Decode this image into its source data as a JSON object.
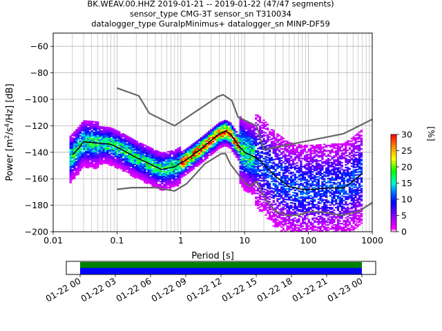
{
  "title_lines": [
    "BK.WEAV.00.HHZ   2019-01-21 -- 2019-01-22  (47/47 segments)",
    "sensor_type CMG-3T sensor_sn T310034",
    "datalogger_type GuralpMinimus+ datalogger_sn MINP-DF59"
  ],
  "colorbar": {
    "label": "[%]",
    "ticks": [
      "0",
      "5",
      "10",
      "15",
      "20",
      "25",
      "30"
    ],
    "range": [
      0,
      30
    ]
  },
  "timeline": {
    "ticks": [
      "01-22 00",
      "01-22 03",
      "01-22 06",
      "01-22 09",
      "01-22 12",
      "01-22 15",
      "01-22 18",
      "01-22 21",
      "01-23 00"
    ],
    "colors": {
      "top_band": "#008000",
      "bottom_band": "#0000ff"
    }
  },
  "chart_data": {
    "type": "line",
    "xlabel": "Period [s]",
    "ylabel": "Power [m²/s⁴/Hz] [dB]",
    "xscale": "log",
    "xlim": [
      0.01,
      1000
    ],
    "ylim": [
      -200,
      -50
    ],
    "xtick_labels": [
      "0.01",
      "0.1",
      "1",
      "10",
      "100",
      "1000"
    ],
    "ytick_labels": [
      "−60",
      "−80",
      "−100",
      "−120",
      "−140",
      "−160",
      "−180",
      "−200"
    ],
    "grid": true,
    "series": [
      {
        "role": "high noise model",
        "color": "#666666",
        "points": [
          [
            0.1,
            -91.5
          ],
          [
            0.22,
            -97.4
          ],
          [
            0.32,
            -110.5
          ],
          [
            0.8,
            -120
          ],
          [
            3.8,
            -98
          ],
          [
            4.6,
            -96.5
          ],
          [
            6.3,
            -101
          ],
          [
            7.9,
            -113.5
          ],
          [
            15.4,
            -120
          ],
          [
            20,
            -138
          ],
          [
            354.8,
            -126
          ],
          [
            10000,
            -91
          ]
        ]
      },
      {
        "role": "low noise model",
        "color": "#666666",
        "points": [
          [
            0.1,
            -168
          ],
          [
            0.17,
            -166.7
          ],
          [
            0.4,
            -166.7
          ],
          [
            0.8,
            -169.2
          ],
          [
            1.24,
            -163.7
          ],
          [
            2.4,
            -148.6
          ],
          [
            4.3,
            -141.1
          ],
          [
            5,
            -141
          ],
          [
            6,
            -149
          ],
          [
            10,
            -163
          ],
          [
            12,
            -166
          ],
          [
            15.6,
            -162
          ],
          [
            21.9,
            -177
          ],
          [
            31.6,
            -185
          ],
          [
            45,
            -187.5
          ],
          [
            70,
            -187.5
          ],
          [
            101,
            -185
          ],
          [
            154,
            -185
          ],
          [
            328,
            -187.5
          ],
          [
            600,
            -185
          ],
          [
            1000,
            -178
          ]
        ]
      },
      {
        "role": "mode",
        "color": "#000000",
        "points": [
          [
            0.02,
            -142
          ],
          [
            0.025,
            -137
          ],
          [
            0.03,
            -132
          ],
          [
            0.05,
            -133
          ],
          [
            0.08,
            -134
          ],
          [
            0.12,
            -138
          ],
          [
            0.2,
            -144
          ],
          [
            0.3,
            -148
          ],
          [
            0.5,
            -153
          ],
          [
            0.8,
            -151
          ],
          [
            1.2,
            -146
          ],
          [
            2,
            -138
          ],
          [
            3,
            -131
          ],
          [
            4,
            -126
          ],
          [
            5,
            -124
          ],
          [
            6,
            -126
          ],
          [
            8,
            -135
          ],
          [
            10,
            -140
          ],
          [
            15,
            -144
          ],
          [
            20,
            -149
          ],
          [
            30,
            -158
          ],
          [
            50,
            -166
          ],
          [
            80,
            -168
          ],
          [
            120,
            -168
          ],
          [
            200,
            -167
          ],
          [
            350,
            -167
          ],
          [
            500,
            -162
          ],
          [
            700,
            -156
          ]
        ]
      }
    ],
    "colorbar_range_percent": [
      0,
      30
    ]
  }
}
